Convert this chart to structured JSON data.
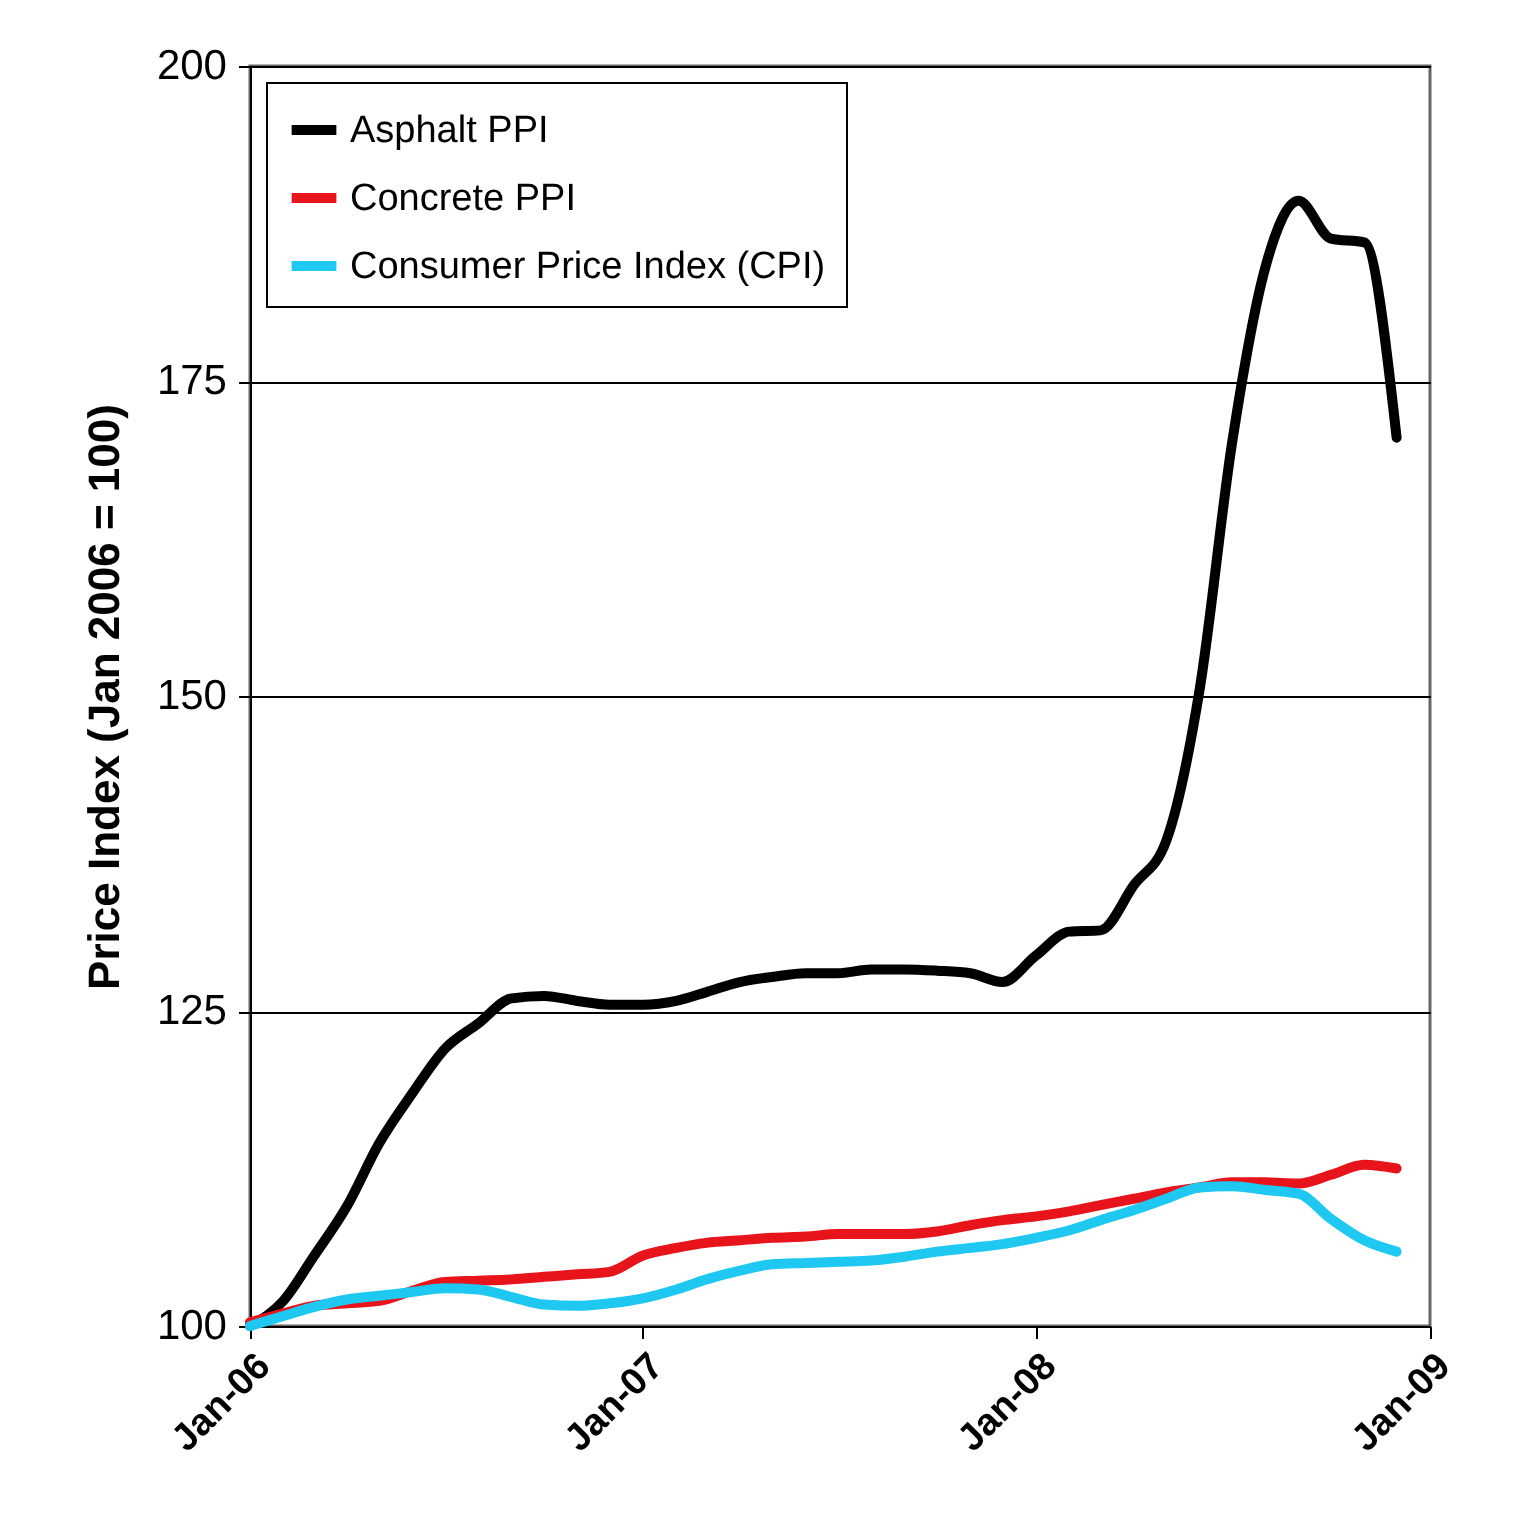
{
  "chart_data": {
    "type": "line",
    "ylabel": "Price Index (Jan 2006 = 100)",
    "x": [
      "2006-01",
      "2006-02",
      "2006-03",
      "2006-04",
      "2006-05",
      "2006-06",
      "2006-07",
      "2006-08",
      "2006-09",
      "2006-10",
      "2006-11",
      "2006-12",
      "2007-01",
      "2007-02",
      "2007-03",
      "2007-04",
      "2007-05",
      "2007-06",
      "2007-07",
      "2007-08",
      "2007-09",
      "2007-10",
      "2007-11",
      "2007-12",
      "2008-01",
      "2008-02",
      "2008-03",
      "2008-04",
      "2008-05",
      "2008-06",
      "2008-07",
      "2008-08",
      "2008-09",
      "2008-10",
      "2008-11",
      "2008-12"
    ],
    "series": [
      {
        "name": "Asphalt PPI",
        "color": "#000000",
        "values": [
          100,
          102,
          105.5,
          109.5,
          114.5,
          118.5,
          122,
          124,
          126,
          126.2,
          125.8,
          125.5,
          125.5,
          125.8,
          126.5,
          127.3,
          127.7,
          128,
          128,
          128.3,
          128.3,
          128.2,
          128,
          127.3,
          129.4,
          131.3,
          131.4,
          135,
          138.5,
          150.5,
          170,
          184,
          189.3,
          186.3,
          186,
          170.5
        ]
      },
      {
        "name": "Concrete PPI",
        "color": "#e8141c",
        "values": [
          100.3,
          101,
          101.6,
          101.8,
          102,
          102.8,
          103.5,
          103.6,
          103.7,
          103.9,
          104.1,
          104.3,
          105.6,
          106.2,
          106.6,
          106.8,
          107,
          107.1,
          107.3,
          107.3,
          107.3,
          107.5,
          108,
          108.4,
          108.7,
          109.1,
          109.6,
          110.1,
          110.6,
          111,
          111.4,
          111.4,
          111.3,
          112,
          112.8,
          112.5
        ]
      },
      {
        "name": "Consumer Price Index (CPI)",
        "color": "#1ec8f0",
        "values": [
          100,
          100.8,
          101.5,
          102.1,
          102.4,
          102.7,
          103,
          102.9,
          102.3,
          101.7,
          101.6,
          101.8,
          102.2,
          102.9,
          103.7,
          104.4,
          104.9,
          105,
          105.1,
          105.2,
          105.5,
          105.9,
          106.2,
          106.5,
          107,
          107.6,
          108.4,
          109.2,
          110.1,
          111,
          111.1,
          110.8,
          110.5,
          108.5,
          106.8,
          105.9
        ]
      }
    ],
    "xlim": [
      "2006-01",
      "2009-01"
    ],
    "xticks": [
      {
        "value": "2006-01",
        "label": "Jan-06"
      },
      {
        "value": "2007-01",
        "label": "Jan-07"
      },
      {
        "value": "2008-01",
        "label": "Jan-08"
      },
      {
        "value": "2009-01",
        "label": "Jan-09"
      }
    ],
    "ylim": [
      100,
      200
    ],
    "yticks": [
      100,
      125,
      150,
      175,
      200
    ],
    "grid": "y",
    "legend": "top left",
    "marker": "none",
    "line_style": "solid"
  }
}
